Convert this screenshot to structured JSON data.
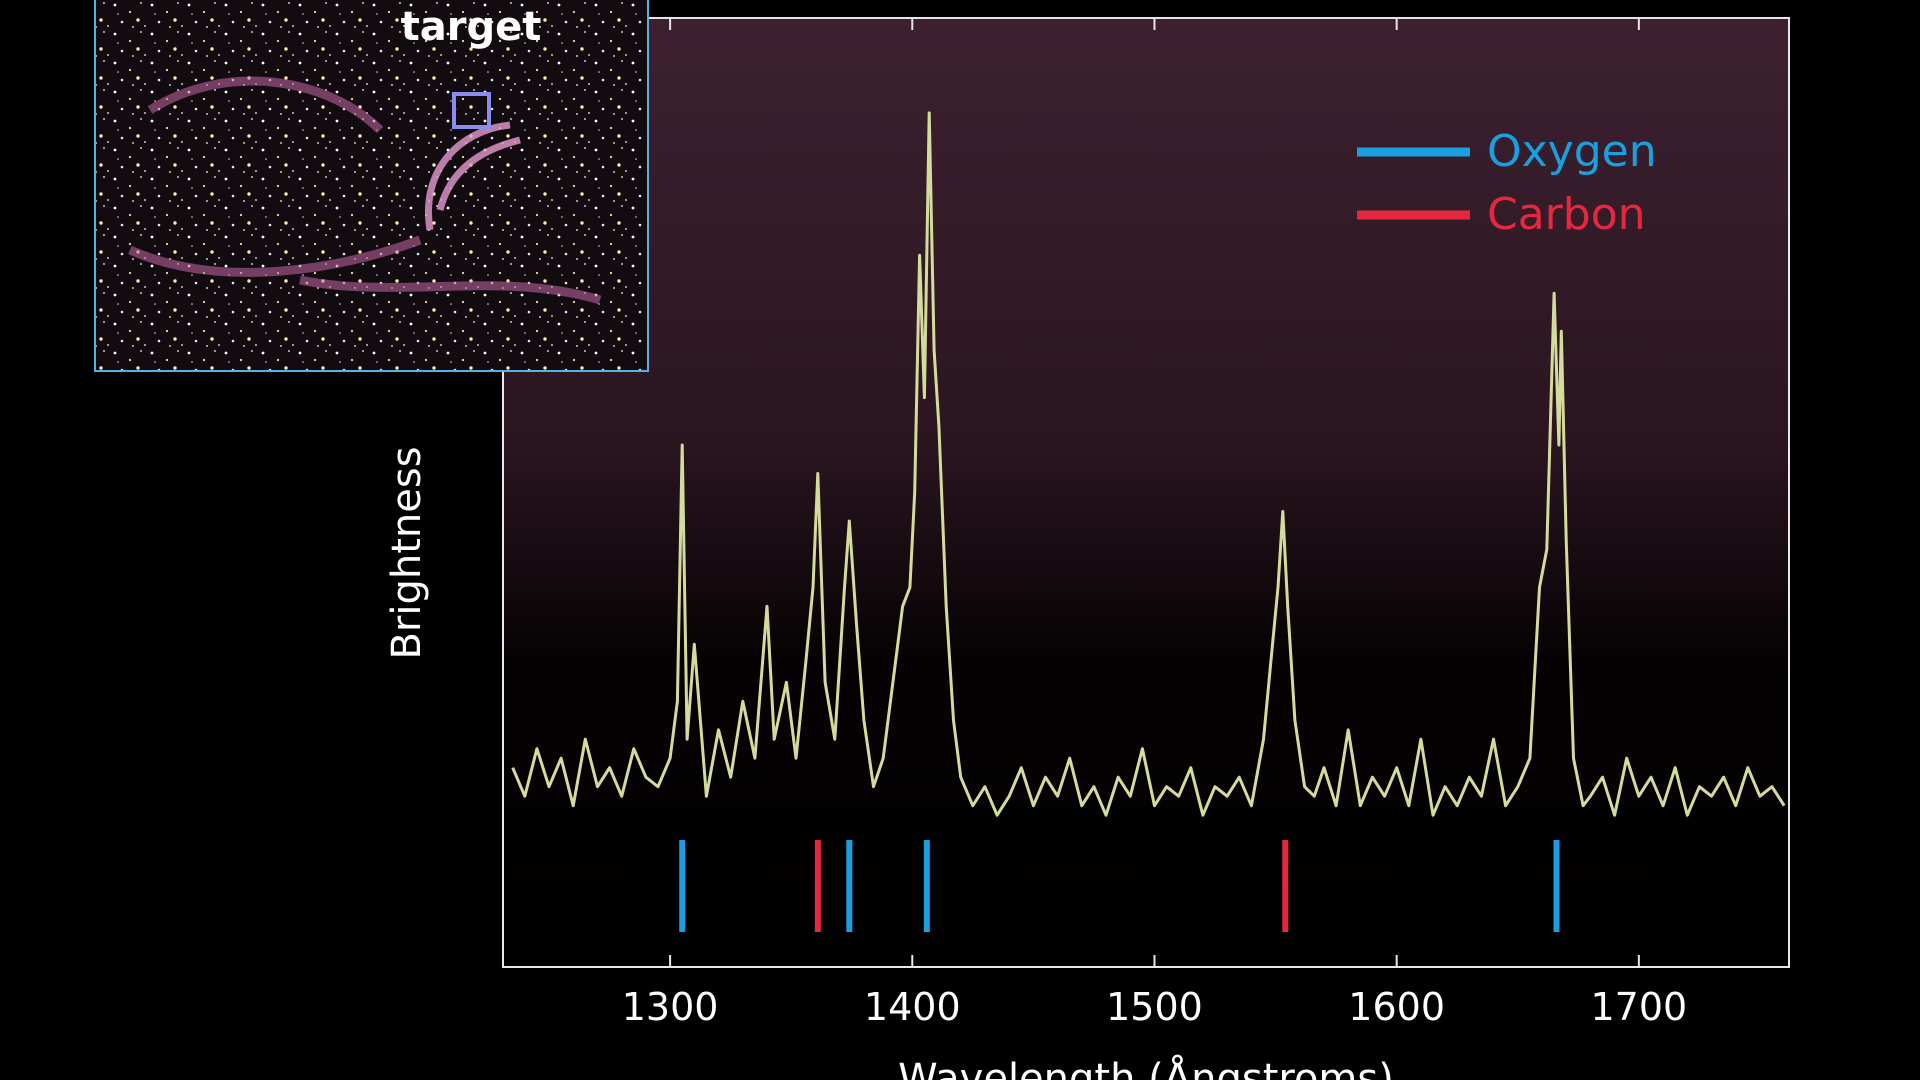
{
  "chart_data": {
    "type": "line",
    "x_label": "Wavelength (Ångstroms)",
    "y_label": "Brightness",
    "x": [
      1235,
      1240,
      1245,
      1250,
      1255,
      1260,
      1265,
      1270,
      1275,
      1280,
      1285,
      1290,
      1295,
      1300,
      1303,
      1305,
      1307,
      1310,
      1315,
      1320,
      1325,
      1330,
      1335,
      1340,
      1343,
      1348,
      1352,
      1356,
      1359,
      1361,
      1364,
      1368,
      1372,
      1374,
      1377,
      1380,
      1384,
      1388,
      1392,
      1396,
      1399,
      1401,
      1403,
      1405,
      1407,
      1409,
      1411,
      1414,
      1417,
      1420,
      1425,
      1430,
      1435,
      1440,
      1445,
      1450,
      1455,
      1460,
      1465,
      1470,
      1475,
      1480,
      1485,
      1490,
      1495,
      1500,
      1505,
      1510,
      1515,
      1520,
      1525,
      1530,
      1535,
      1540,
      1545,
      1548,
      1551,
      1553,
      1555,
      1558,
      1562,
      1566,
      1570,
      1575,
      1580,
      1585,
      1590,
      1595,
      1600,
      1605,
      1610,
      1615,
      1620,
      1625,
      1630,
      1635,
      1640,
      1645,
      1650,
      1655,
      1659,
      1662,
      1665,
      1667,
      1668,
      1670,
      1673,
      1677,
      1680,
      1685,
      1690,
      1695,
      1700,
      1705,
      1710,
      1715,
      1720,
      1725,
      1730,
      1735,
      1740,
      1745,
      1750,
      1755,
      1760
    ],
    "series": [
      {
        "color": "#d4dc9c",
        "values": [
          21,
          18,
          23,
          19,
          22,
          17,
          24,
          19,
          21,
          18,
          23,
          20,
          19,
          22,
          28,
          55,
          24,
          34,
          18,
          25,
          20,
          28,
          22,
          38,
          24,
          30,
          22,
          32,
          40,
          52,
          30,
          24,
          40,
          47,
          36,
          26,
          19,
          22,
          30,
          38,
          40,
          50,
          75,
          60,
          90,
          65,
          57,
          38,
          26,
          20,
          17,
          19,
          16,
          18,
          21,
          17,
          20,
          18,
          22,
          17,
          19,
          16,
          20,
          18,
          23,
          17,
          19,
          18,
          21,
          16,
          19,
          18,
          20,
          17,
          24,
          32,
          40,
          48,
          38,
          26,
          19,
          18,
          21,
          17,
          25,
          17,
          20,
          18,
          21,
          17,
          24,
          16,
          19,
          17,
          20,
          18,
          24,
          17,
          19,
          22,
          40,
          44,
          71,
          55,
          67,
          45,
          22,
          17,
          18,
          20,
          16,
          22,
          18,
          20,
          17,
          21,
          16,
          19,
          18,
          20,
          17,
          21,
          18,
          19,
          17
        ]
      }
    ],
    "xlim": [
      1231,
      1762
    ],
    "ylim": [
      0,
      100
    ],
    "xticks": [
      1300,
      1400,
      1500,
      1600,
      1700
    ],
    "line_markers": [
      {
        "name": "Oxygen",
        "color": "#1a9fe0",
        "x": [
          1305,
          1374,
          1406,
          1666
        ]
      },
      {
        "name": "Carbon",
        "color": "#e5283f",
        "x": [
          1361,
          1554
        ]
      }
    ]
  },
  "inset": {
    "label": "target"
  }
}
